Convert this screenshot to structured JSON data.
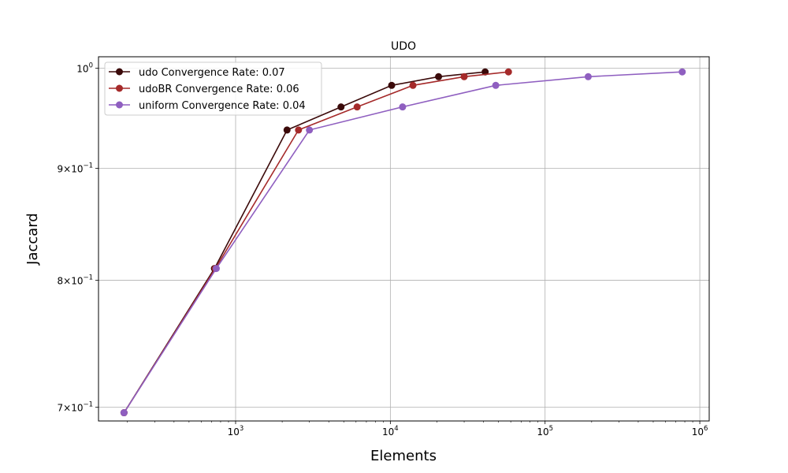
{
  "chart_data": {
    "type": "line",
    "title": "UDO",
    "xlabel": "Elements",
    "ylabel": "Jaccard",
    "x_scale": "log",
    "y_scale": "log",
    "xlim": [
      130,
      1150000
    ],
    "ylim": [
      0.69,
      1.012
    ],
    "grid": true,
    "legend_position": "top-left",
    "x_ticks": [
      {
        "value": 1000,
        "base": "10",
        "exp": "3"
      },
      {
        "value": 10000,
        "base": "10",
        "exp": "4"
      },
      {
        "value": 100000,
        "base": "10",
        "exp": "5"
      },
      {
        "value": 1000000,
        "base": "10",
        "exp": "6"
      }
    ],
    "y_ticks": [
      {
        "value": 0.7,
        "mant": "7",
        "base": "10",
        "exp": "−1"
      },
      {
        "value": 0.8,
        "mant": "8",
        "base": "10",
        "exp": "−1"
      },
      {
        "value": 0.9,
        "mant": "9",
        "base": "10",
        "exp": "−1"
      },
      {
        "value": 1.0,
        "mant": "",
        "base": "10",
        "exp": "0"
      }
    ],
    "series": [
      {
        "name": "udo Convergence Rate: 0.07",
        "color": "#3b0a0a",
        "x": [
          190,
          730,
          2150,
          4800,
          10200,
          20500,
          41000
        ],
        "y": [
          0.696,
          0.81,
          0.937,
          0.96,
          0.982,
          0.991,
          0.996
        ]
      },
      {
        "name": "udoBR Convergence Rate: 0.06",
        "color": "#a52a2a",
        "x": [
          190,
          740,
          2550,
          6100,
          14000,
          30000,
          58000
        ],
        "y": [
          0.696,
          0.81,
          0.937,
          0.96,
          0.982,
          0.991,
          0.996
        ]
      },
      {
        "name": "uniform Convergence Rate: 0.04",
        "color": "#8f5fc0",
        "x": [
          190,
          750,
          3000,
          12000,
          48000,
          190000,
          770000
        ],
        "y": [
          0.696,
          0.81,
          0.937,
          0.96,
          0.982,
          0.991,
          0.996
        ]
      }
    ]
  }
}
